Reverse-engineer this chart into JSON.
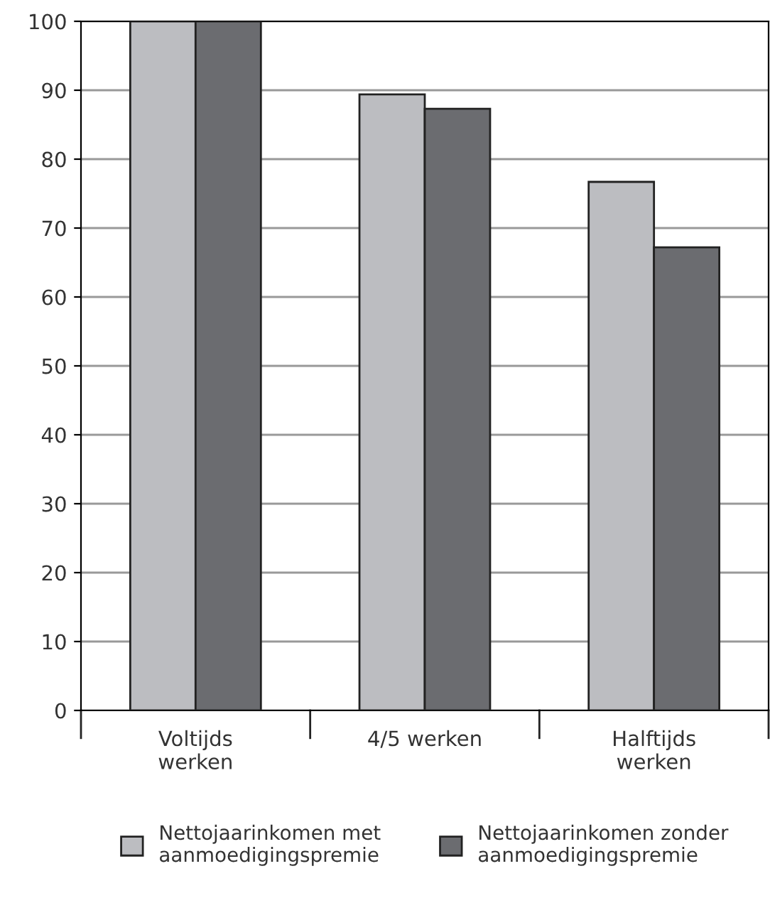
{
  "chart_data": {
    "type": "bar",
    "categories": [
      "Voltijds\nwerken",
      "4/5 werken",
      "Halftijds\nwerken"
    ],
    "series": [
      {
        "name": "Nettojaarinkomen met\naanmoedigingspremie",
        "color": "#bcbdc1",
        "values": [
          100,
          89.4,
          76.7
        ]
      },
      {
        "name": "Nettojaarinkomen zonder\naanmoedigingspremie",
        "color": "#6b6c70",
        "values": [
          100,
          87.3,
          67.2
        ]
      }
    ],
    "ylim": [
      0,
      100
    ],
    "yticks": [
      0,
      10,
      20,
      30,
      40,
      50,
      60,
      70,
      80,
      90,
      100
    ],
    "grid": "y",
    "legend": "bottom"
  }
}
